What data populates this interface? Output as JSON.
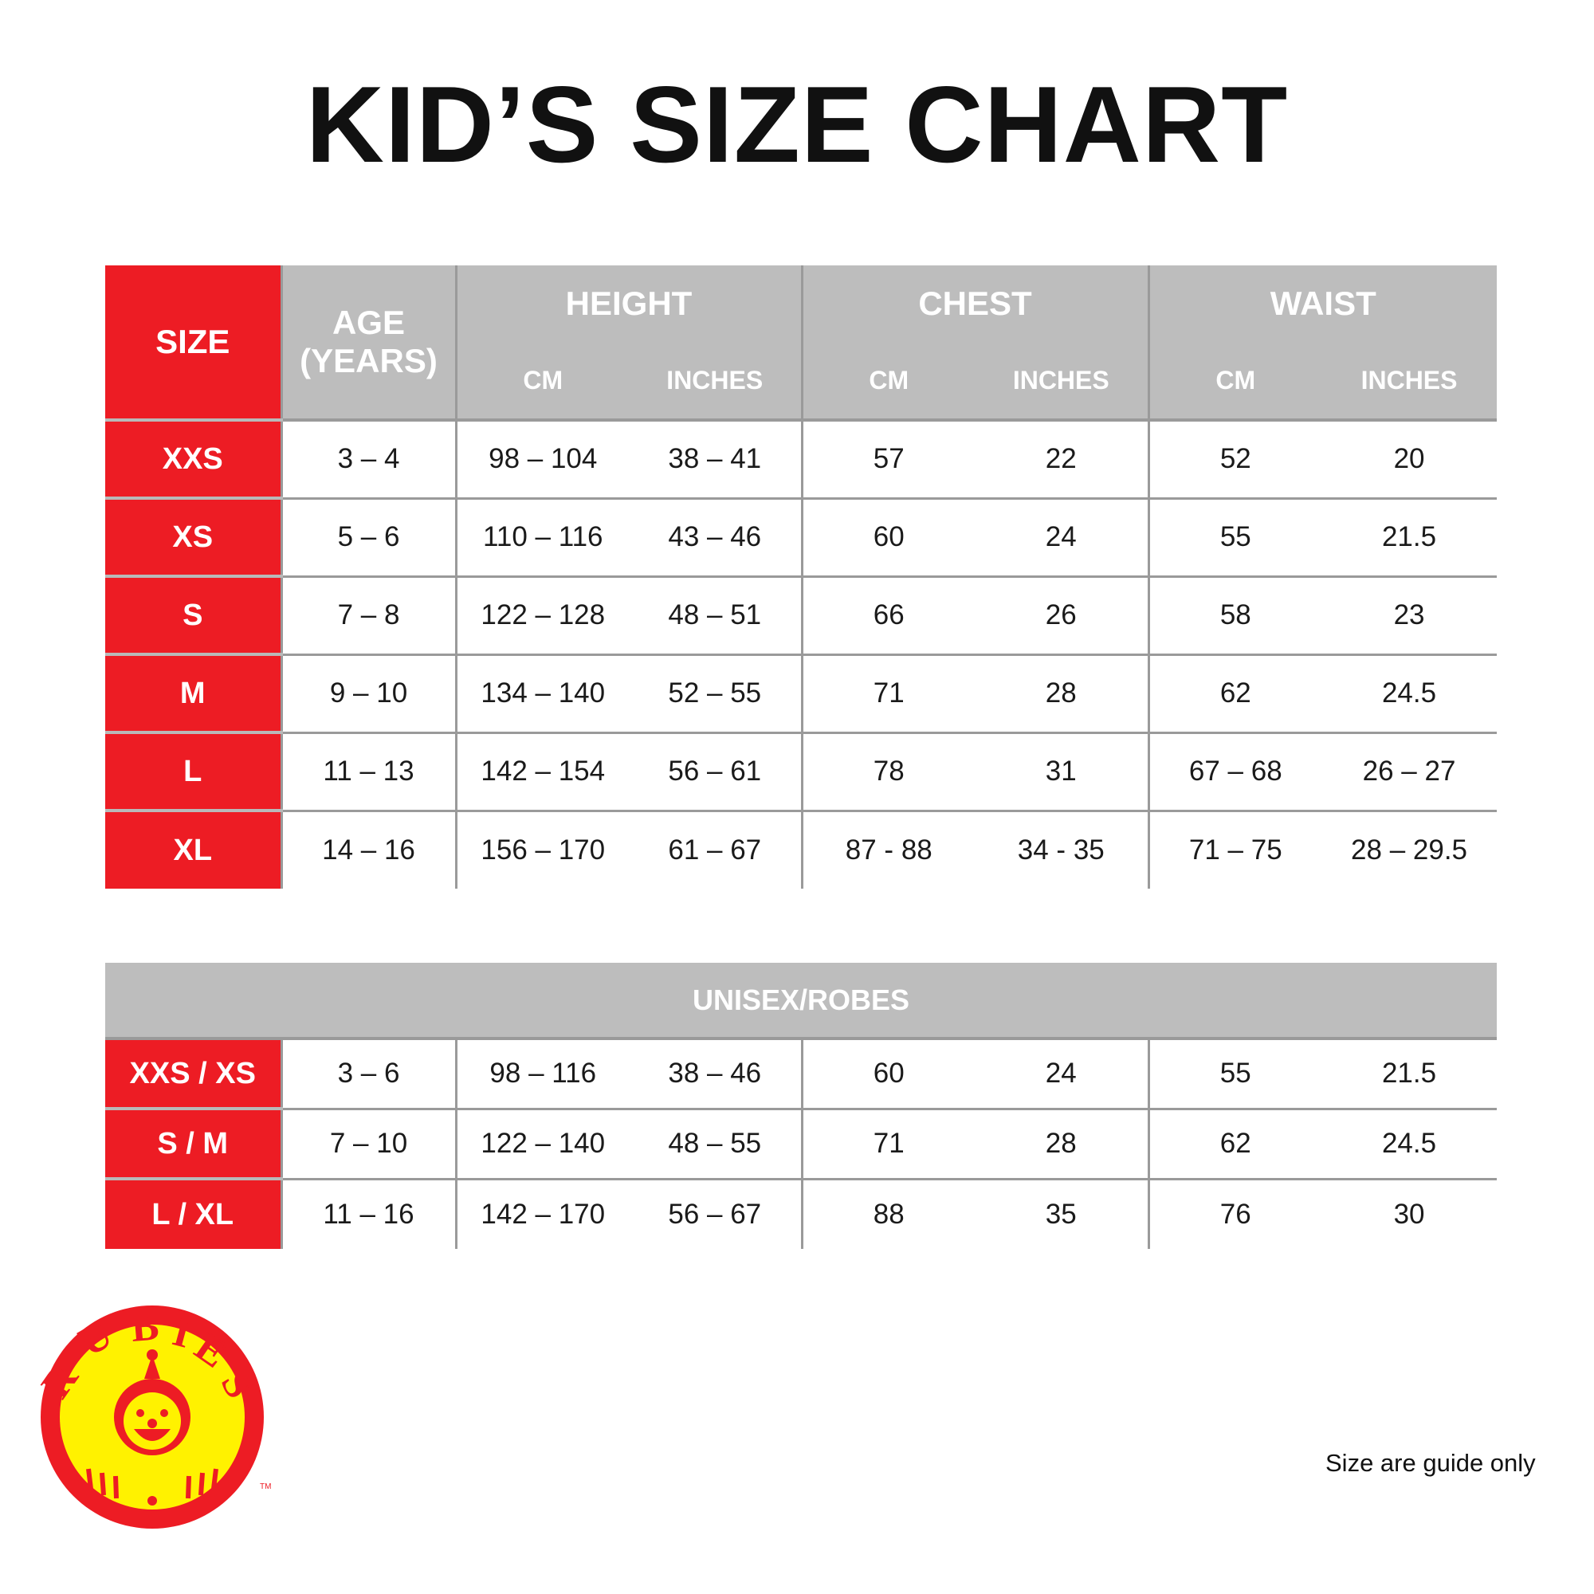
{
  "title": "KID’S SIZE CHART",
  "colors": {
    "red": "#ed1c24",
    "header_gray": "#bdbdbd",
    "logo_yellow": "#fff200"
  },
  "table": {
    "headers": {
      "size": "SIZE",
      "age_line1": "AGE",
      "age_line2": "(YEARS)",
      "height": "HEIGHT",
      "chest": "CHEST",
      "waist": "WAIST",
      "cm": "CM",
      "inches": "INCHES"
    },
    "rows": [
      {
        "size": "XXS",
        "age": "3 – 4",
        "height_cm": "98 – 104",
        "height_in": "38 – 41",
        "chest_cm": "57",
        "chest_in": "22",
        "waist_cm": "52",
        "waist_in": "20"
      },
      {
        "size": "XS",
        "age": "5 – 6",
        "height_cm": "110 – 116",
        "height_in": "43 – 46",
        "chest_cm": "60",
        "chest_in": "24",
        "waist_cm": "55",
        "waist_in": "21.5"
      },
      {
        "size": "S",
        "age": "7 – 8",
        "height_cm": "122 – 128",
        "height_in": "48 – 51",
        "chest_cm": "66",
        "chest_in": "26",
        "waist_cm": "58",
        "waist_in": "23"
      },
      {
        "size": "M",
        "age": "9 – 10",
        "height_cm": "134 – 140",
        "height_in": "52 – 55",
        "chest_cm": "71",
        "chest_in": "28",
        "waist_cm": "62",
        "waist_in": "24.5"
      },
      {
        "size": "L",
        "age": "11 – 13",
        "height_cm": "142 – 154",
        "height_in": "56 – 61",
        "chest_cm": "78",
        "chest_in": "31",
        "waist_cm": "67 – 68",
        "waist_in": "26 – 27"
      },
      {
        "size": "XL",
        "age": "14 – 16",
        "height_cm": "156 – 170",
        "height_in": "61 – 67",
        "chest_cm": "87 - 88",
        "chest_in": "34 - 35",
        "waist_cm": "71 – 75",
        "waist_in": "28 – 29.5"
      }
    ]
  },
  "unisex": {
    "header": "UNISEX/ROBES",
    "rows": [
      {
        "size": "XXS / XS",
        "age": "3 – 6",
        "height_cm": "98 – 116",
        "height_in": "38 – 46",
        "chest_cm": "60",
        "chest_in": "24",
        "waist_cm": "55",
        "waist_in": "21.5"
      },
      {
        "size": "S / M",
        "age": "7 – 10",
        "height_cm": "122 – 140",
        "height_in": "48 – 55",
        "chest_cm": "71",
        "chest_in": "28",
        "waist_cm": "62",
        "waist_in": "24.5"
      },
      {
        "size": "L / XL",
        "age": "11 – 16",
        "height_cm": "142 – 170",
        "height_in": "56 – 67",
        "chest_cm": "88",
        "chest_in": "35",
        "waist_cm": "76",
        "waist_in": "30"
      }
    ]
  },
  "logo": {
    "text": "RUBIES",
    "tm": "TM"
  },
  "note": "Size are guide only"
}
